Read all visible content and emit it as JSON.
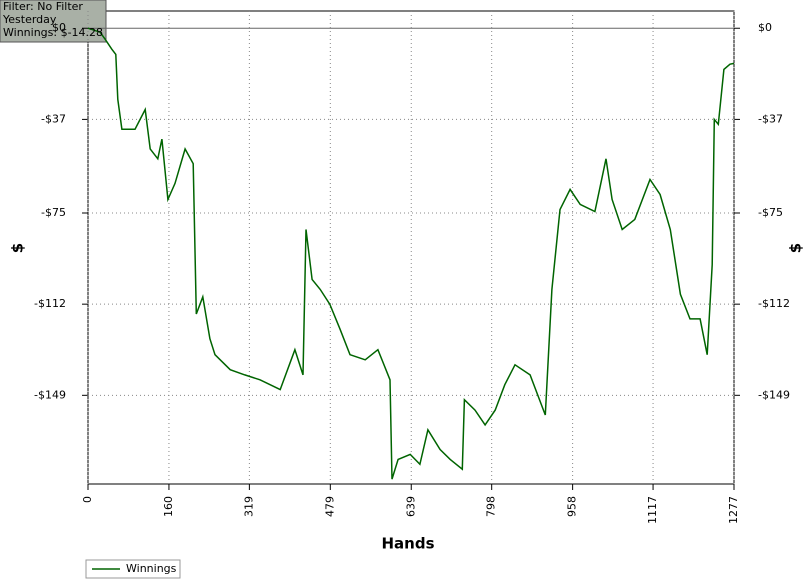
{
  "chart_data": {
    "type": "line",
    "annotations": [
      "Filter: No Filter",
      "Yesterday",
      "Winnings: $-14.28"
    ],
    "xlabel": "Hands",
    "ylabel": "$",
    "y2label": "$",
    "xlim": [
      0,
      1277
    ],
    "xticks": [
      0,
      160,
      319,
      479,
      639,
      798,
      958,
      1117,
      1277
    ],
    "ylim": [
      -185,
      7
    ],
    "yticks": [
      {
        "value": 0,
        "label": "$0"
      },
      {
        "value": -37,
        "label": "-$37"
      },
      {
        "value": -75,
        "label": "-$75"
      },
      {
        "value": -112,
        "label": "-$112"
      },
      {
        "value": -149,
        "label": "-$149"
      }
    ],
    "grid": true,
    "legend": "bottom-left",
    "x": [
      0,
      24,
      34,
      47,
      55,
      59,
      67,
      93,
      113,
      123,
      138,
      146,
      158,
      172,
      192,
      208,
      214,
      227,
      241,
      251,
      281,
      310,
      340,
      380,
      409,
      425,
      431,
      443,
      459,
      478,
      498,
      518,
      548,
      573,
      597,
      601,
      613,
      637,
      656,
      672,
      696,
      716,
      740,
      744,
      765,
      785,
      805,
      824,
      844,
      874,
      904,
      917,
      933,
      953,
      973,
      1002,
      1024,
      1036,
      1056,
      1081,
      1111,
      1131,
      1151,
      1171,
      1190,
      1210,
      1224,
      1234,
      1238,
      1246,
      1257,
      1269,
      1277
    ],
    "series": [
      {
        "name": "Winnings",
        "color": "#006400",
        "values": [
          0,
          -1.6,
          -4.5,
          -8.5,
          -10.6,
          -28.9,
          -41,
          -41,
          -33,
          -49,
          -53,
          -45,
          -69.5,
          -63,
          -49,
          -55,
          -116,
          -109,
          -126,
          -132.5,
          -138.6,
          -140.7,
          -142.7,
          -146.7,
          -130.5,
          -140.7,
          -81.7,
          -102,
          -106,
          -112,
          -122,
          -132.5,
          -134.6,
          -130.5,
          -142.7,
          -183,
          -175,
          -173,
          -177,
          -163,
          -171,
          -175,
          -179,
          -150.8,
          -155,
          -161,
          -155,
          -144.7,
          -136.6,
          -140.7,
          -157,
          -106,
          -73.6,
          -65.4,
          -71.5,
          -74.4,
          -53,
          -69.5,
          -81.7,
          -77.6,
          -61.4,
          -67.5,
          -81.7,
          -108,
          -118,
          -118,
          -132.5,
          -96,
          -37,
          -39,
          -16.7,
          -14.6,
          -14.28
        ]
      }
    ]
  }
}
